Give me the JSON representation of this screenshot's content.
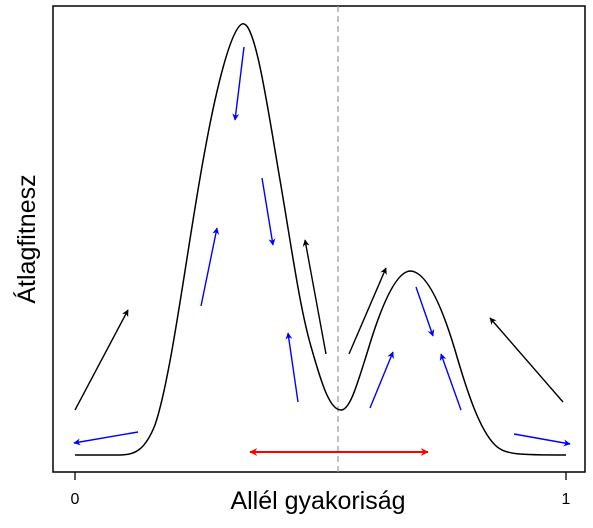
{
  "labels": {
    "ylabel": "Átlagfitnesz",
    "xlabel": "Allél gyakoriság",
    "x_tick_left": "0",
    "x_tick_right": "1"
  },
  "colors": {
    "curve": "#000000",
    "axes": "#000000",
    "midline": "#999999",
    "arrow_black": "#000000",
    "arrow_blue": "#0000ff",
    "arrow_red": "#ff0000"
  }
}
